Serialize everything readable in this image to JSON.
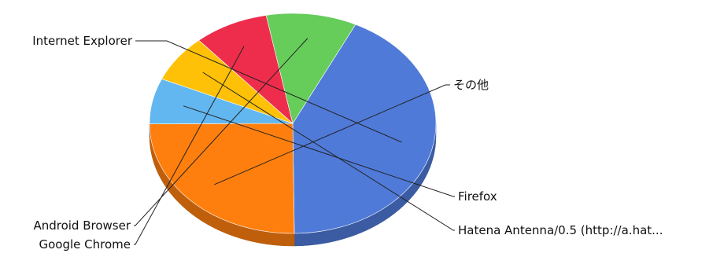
{
  "chart_data": {
    "type": "pie",
    "style": "3d",
    "title": "",
    "slices": [
      {
        "label": "Internet Explorer",
        "value": 42.6,
        "color": "#4f7ad8"
      },
      {
        "label": "その他",
        "value": 25.1,
        "color": "#ff7f0e"
      },
      {
        "label": "Firefox",
        "value": 6.7,
        "color": "#62b7f0"
      },
      {
        "label": "Hatena Antenna/0.5 (http://a.hat...",
        "value": 7.0,
        "color": "#ffc107"
      },
      {
        "label": "Google Chrome",
        "value": 8.4,
        "color": "#ee2d4c"
      },
      {
        "label": "Android Browser",
        "value": 10.2,
        "color": "#66cc5a"
      }
    ],
    "start_angle_deg": -64,
    "legend": "none"
  }
}
